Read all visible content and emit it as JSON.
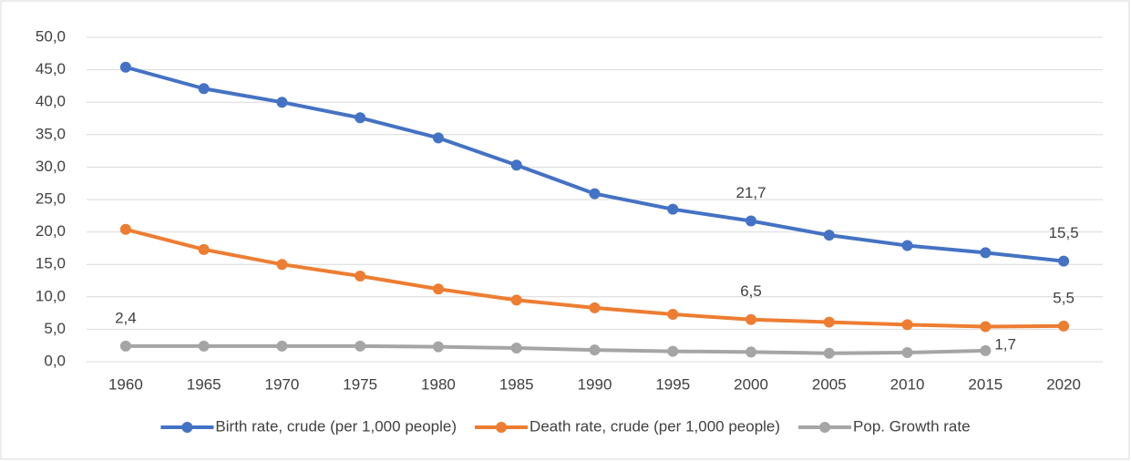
{
  "chart_data": {
    "type": "line",
    "categories": [
      "1960",
      "1965",
      "1970",
      "1975",
      "1980",
      "1985",
      "1990",
      "1995",
      "2000",
      "2005",
      "2010",
      "2015",
      "2020"
    ],
    "series": [
      {
        "name": "Birth rate, crude (per 1,000 people)",
        "color": "#4472c4",
        "values": [
          45.4,
          42.1,
          40.0,
          37.6,
          34.5,
          30.3,
          25.9,
          23.5,
          21.7,
          19.5,
          17.9,
          16.8,
          15.5
        ],
        "value_labels": [
          null,
          null,
          null,
          null,
          null,
          null,
          null,
          null,
          "21,7",
          null,
          null,
          null,
          "15,5"
        ]
      },
      {
        "name": "Death rate, crude (per 1,000 people)",
        "color": "#ed7d31",
        "values": [
          20.4,
          17.3,
          15.0,
          13.2,
          11.2,
          9.5,
          8.3,
          7.3,
          6.5,
          6.1,
          5.7,
          5.4,
          5.5
        ],
        "value_labels": [
          null,
          null,
          null,
          null,
          null,
          null,
          null,
          null,
          "6,5",
          null,
          null,
          null,
          "5,5"
        ]
      },
      {
        "name": "Pop. Growth rate",
        "color": "#a5a5a5",
        "values": [
          2.4,
          2.4,
          2.4,
          2.4,
          2.3,
          2.1,
          1.8,
          1.6,
          1.5,
          1.3,
          1.4,
          1.7,
          null
        ],
        "value_labels": [
          "2,4",
          null,
          null,
          null,
          null,
          null,
          null,
          null,
          null,
          null,
          null,
          "1,7",
          null
        ]
      }
    ],
    "ylim": [
      0,
      50
    ],
    "yticks": [
      {
        "value": 0,
        "label": "0,0"
      },
      {
        "value": 5,
        "label": "5,0"
      },
      {
        "value": 10,
        "label": "10,0"
      },
      {
        "value": 15,
        "label": "15,0"
      },
      {
        "value": 20,
        "label": "20,0"
      },
      {
        "value": 25,
        "label": "25,0"
      },
      {
        "value": 30,
        "label": "30,0"
      },
      {
        "value": 35,
        "label": "35,0"
      },
      {
        "value": 40,
        "label": "40,0"
      },
      {
        "value": 45,
        "label": "45,0"
      },
      {
        "value": 50,
        "label": "50,0"
      }
    ],
    "grid": true,
    "legend": "bottom"
  }
}
